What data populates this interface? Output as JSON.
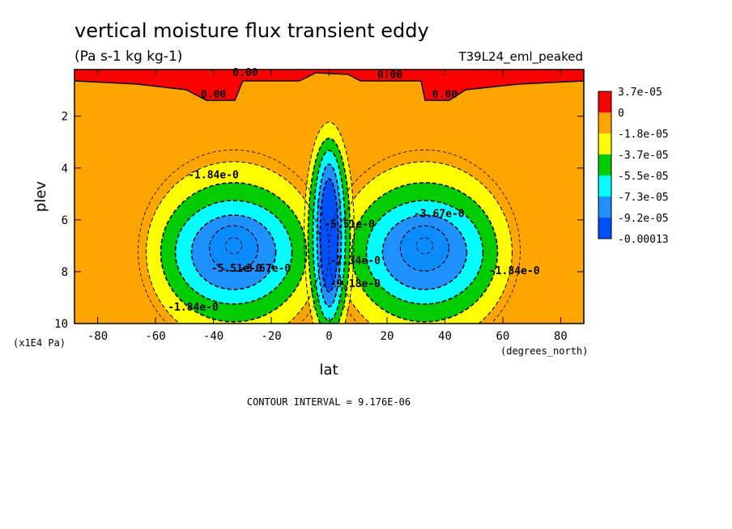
{
  "chart_data": {
    "type": "heatmap",
    "subtype": "filled-contour",
    "title": "vertical moisture flux transient eddy",
    "units_label": "(Pa s-1 kg kg-1)",
    "run_label": "T39L24_eml_peaked",
    "xlabel": "lat",
    "x_units": "(degrees_north)",
    "ylabel": "plev",
    "y_units": "(x1E4 Pa)",
    "xlim": [
      -88,
      88
    ],
    "ylim": [
      10,
      0.2
    ],
    "y_inverted": true,
    "x_ticks": [
      -80,
      -60,
      -40,
      -20,
      0,
      20,
      40,
      60,
      80
    ],
    "y_ticks": [
      2,
      4,
      6,
      8,
      10
    ],
    "contour_interval_text": "CONTOUR INTERVAL = 9.176E-06",
    "colorbar": {
      "labels": [
        "3.7e-05",
        "0",
        "-1.8e-05",
        "-3.7e-05",
        "-5.5e-05",
        "-7.3e-05",
        "-9.2e-05",
        "-0.00013"
      ],
      "colors": [
        "#ff0000",
        "#ffa500",
        "#ffff00",
        "#00cc00",
        "#00ffff",
        "#1e90ff",
        "#0050ff"
      ]
    },
    "contour_labels": [
      {
        "text": "0.00",
        "lat": -40,
        "plev": 1.3
      },
      {
        "text": "0.00",
        "lat": 40,
        "plev": 1.3
      },
      {
        "text": "0.00",
        "lat": -29,
        "plev": 0.45
      },
      {
        "text": "0.00",
        "lat": 21,
        "plev": 0.55
      },
      {
        "text": "-1.84e-0",
        "lat": -40,
        "plev": 4.4
      },
      {
        "text": "-1.84e-0",
        "lat": -47,
        "plev": 9.5
      },
      {
        "text": "-1.84e-0",
        "lat": 64,
        "plev": 8.1
      },
      {
        "text": "-3.67e-0",
        "lat": 38,
        "plev": 5.9
      },
      {
        "text": "-3.67e-0",
        "lat": -22,
        "plev": 8.0
      },
      {
        "text": "-5.51e-0",
        "lat": -32,
        "plev": 8.0
      },
      {
        "text": "-5.51e-0",
        "lat": 7,
        "plev": 6.3
      },
      {
        "text": "-7.34e-0",
        "lat": 9,
        "plev": 7.7
      },
      {
        "text": "-9.18e-0",
        "lat": 9,
        "plev": 8.6
      }
    ]
  },
  "colors": {
    "background": "#ffa500",
    "frame": "#000000"
  }
}
